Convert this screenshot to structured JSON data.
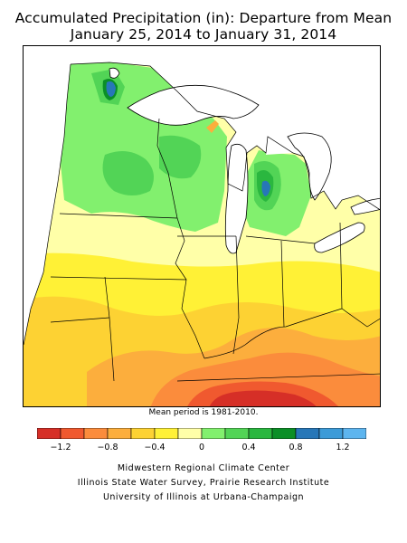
{
  "title": {
    "line1": "Accumulated Precipitation (in): Departure from Mean",
    "line2": "January 25, 2014 to January 31, 2014"
  },
  "note": "Mean period is 1981-2010.",
  "legend": {
    "bins": [
      {
        "from": -1.4,
        "to": -1.2,
        "color": "#d62f27"
      },
      {
        "from": -1.2,
        "to": -1.0,
        "color": "#f0592f"
      },
      {
        "from": -1.0,
        "to": -0.8,
        "color": "#fb8c3c"
      },
      {
        "from": -0.8,
        "to": -0.6,
        "color": "#fcae3d"
      },
      {
        "from": -0.6,
        "to": -0.4,
        "color": "#fdd233"
      },
      {
        "from": -0.4,
        "to": -0.2,
        "color": "#fff136"
      },
      {
        "from": -0.2,
        "to": 0.0,
        "color": "#ffffa8"
      },
      {
        "from": 0.0,
        "to": 0.2,
        "color": "#82f06e"
      },
      {
        "from": 0.2,
        "to": 0.4,
        "color": "#52d456"
      },
      {
        "from": 0.4,
        "to": 0.6,
        "color": "#2ab73f"
      },
      {
        "from": 0.6,
        "to": 0.8,
        "color": "#0b8f27"
      },
      {
        "from": 0.8,
        "to": 1.0,
        "color": "#2777b8"
      },
      {
        "from": 1.0,
        "to": 1.2,
        "color": "#3c9bd8"
      },
      {
        "from": 1.2,
        "to": 1.4,
        "color": "#5db5ef"
      }
    ],
    "tick_labels": [
      "−1.2",
      "−0.8",
      "−0.4",
      "0",
      "0.4",
      "0.8",
      "1.2"
    ],
    "tick_values": [
      -1.2,
      -0.8,
      -0.4,
      0,
      0.4,
      0.8,
      1.2
    ],
    "range": [
      -1.4,
      1.4
    ]
  },
  "credits": [
    "Midwestern Regional Climate Center",
    "Illinois State Water Survey, Prairie Research Institute",
    "University of Illinois at Urbana-Champaign"
  ],
  "colors": {
    "land_outline": "#000000",
    "water": "#ffffff"
  }
}
